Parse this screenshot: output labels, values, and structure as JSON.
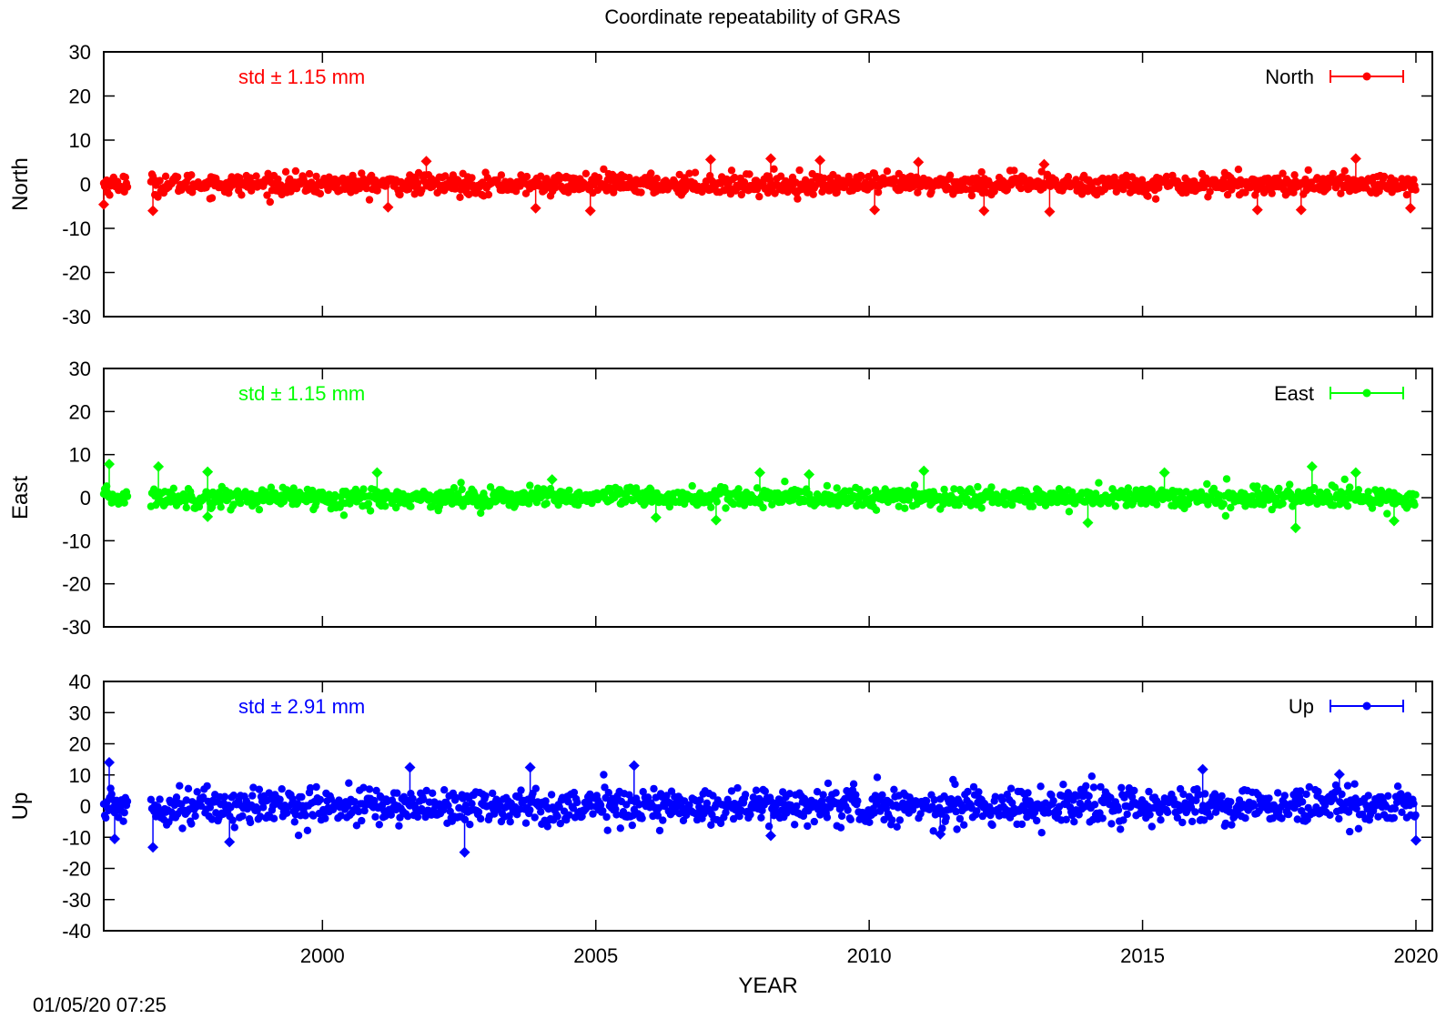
{
  "title": "Coordinate repeatability of GRAS",
  "timestamp": "01/05/20 07:25",
  "chart_data": [
    {
      "type": "scatter",
      "ylabel": "North",
      "legend": "North",
      "std_label": "std ± 1.15 mm",
      "color": "#ff0000",
      "xlim": [
        1996.0,
        2020.3
      ],
      "ylim": [
        -30,
        30
      ],
      "yticks": [
        -30,
        -20,
        -10,
        0,
        10,
        20,
        30
      ],
      "xticks": [
        2000,
        2005,
        2010,
        2015,
        2020
      ],
      "legend_position": "top-right",
      "grid": false,
      "x_range": [
        1996.0,
        2020.0
      ],
      "scatter_std": 1.15,
      "notable_points": [
        [
          1996.0,
          -4.6
        ],
        [
          1996.9,
          -6.0
        ],
        [
          2001.2,
          -5.2
        ],
        [
          2001.9,
          5.2
        ],
        [
          2003.9,
          -5.4
        ],
        [
          2004.9,
          -6.0
        ],
        [
          2007.1,
          5.6
        ],
        [
          2008.2,
          5.8
        ],
        [
          2009.1,
          5.4
        ],
        [
          2010.1,
          -5.8
        ],
        [
          2010.9,
          5.0
        ],
        [
          2012.1,
          -6.0
        ],
        [
          2013.3,
          -6.2
        ],
        [
          2013.2,
          4.5
        ],
        [
          2017.1,
          -5.8
        ],
        [
          2017.9,
          -5.8
        ],
        [
          2018.9,
          5.8
        ],
        [
          2019.9,
          -5.4
        ]
      ]
    },
    {
      "type": "scatter",
      "ylabel": "East",
      "legend": "East",
      "std_label": "std ± 1.15 mm",
      "color": "#00ff00",
      "xlim": [
        1996.0,
        2020.3
      ],
      "ylim": [
        -30,
        30
      ],
      "yticks": [
        -30,
        -20,
        -10,
        0,
        10,
        20,
        30
      ],
      "xticks": [
        2000,
        2005,
        2010,
        2015,
        2020
      ],
      "legend_position": "top-right",
      "grid": false,
      "x_range": [
        1996.0,
        2020.0
      ],
      "scatter_std": 1.15,
      "notable_points": [
        [
          1996.1,
          7.8
        ],
        [
          1997.0,
          7.2
        ],
        [
          1997.9,
          6.0
        ],
        [
          1997.9,
          -4.4
        ],
        [
          2001.0,
          5.8
        ],
        [
          2004.2,
          4.2
        ],
        [
          2006.1,
          -4.6
        ],
        [
          2007.2,
          -5.2
        ],
        [
          2008.0,
          5.8
        ],
        [
          2008.9,
          5.4
        ],
        [
          2011.0,
          6.2
        ],
        [
          2014.0,
          -5.8
        ],
        [
          2015.4,
          5.8
        ],
        [
          2017.8,
          -7.0
        ],
        [
          2018.1,
          7.2
        ],
        [
          2018.9,
          5.8
        ],
        [
          2019.6,
          -5.4
        ]
      ]
    },
    {
      "type": "scatter",
      "ylabel": "Up",
      "legend": "Up",
      "std_label": "std ± 2.91 mm",
      "color": "#0000ff",
      "xlim": [
        1996.0,
        2020.3
      ],
      "ylim": [
        -40,
        40
      ],
      "yticks": [
        -40,
        -30,
        -20,
        -10,
        0,
        10,
        20,
        30,
        40
      ],
      "xticks": [
        2000,
        2005,
        2010,
        2015,
        2020
      ],
      "xlabel": "YEAR",
      "legend_position": "top-right",
      "grid": false,
      "x_range": [
        1996.0,
        2020.0
      ],
      "scatter_std": 2.91,
      "notable_points": [
        [
          1996.1,
          14.0
        ],
        [
          1996.2,
          -10.5
        ],
        [
          1996.9,
          -13.2
        ],
        [
          1998.3,
          -11.5
        ],
        [
          2001.6,
          12.4
        ],
        [
          2002.6,
          -14.8
        ],
        [
          2003.8,
          12.4
        ],
        [
          2005.7,
          13.0
        ],
        [
          2008.2,
          -9.5
        ],
        [
          2011.3,
          -9.0
        ],
        [
          2016.1,
          11.8
        ],
        [
          2018.6,
          10.2
        ],
        [
          2020.0,
          -11.0
        ]
      ]
    }
  ]
}
